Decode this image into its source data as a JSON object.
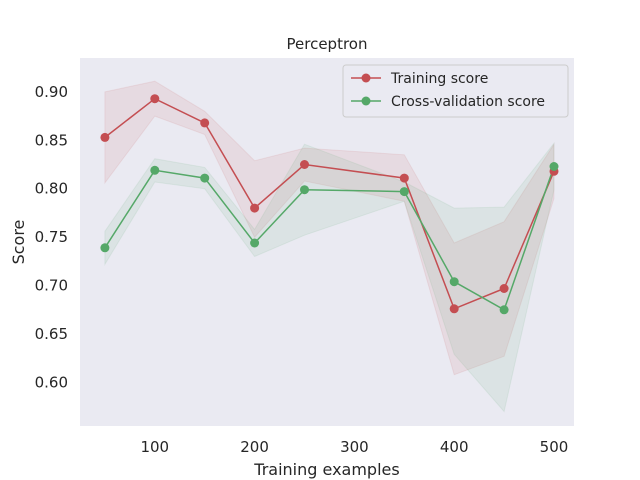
{
  "chart_data": {
    "type": "line",
    "title": "Perceptron",
    "xlabel": "Training examples",
    "ylabel": "Score",
    "xlim": [
      25,
      520
    ],
    "ylim": [
      0.555,
      0.935
    ],
    "xticks": [
      100,
      200,
      300,
      400,
      500
    ],
    "xtick_labels": [
      "100",
      "200",
      "300",
      "400",
      "500"
    ],
    "yticks": [
      0.6,
      0.65,
      0.7,
      0.75,
      0.8,
      0.85,
      0.9
    ],
    "ytick_labels": [
      "0.60",
      "0.65",
      "0.70",
      "0.75",
      "0.80",
      "0.85",
      "0.90"
    ],
    "grid": false,
    "legend_position": "top-right",
    "x": [
      50,
      100,
      150,
      200,
      250,
      350,
      400,
      450,
      500
    ],
    "series": [
      {
        "name": "Training score",
        "color": "#c44e52",
        "values": [
          0.853,
          0.893,
          0.868,
          0.78,
          0.825,
          0.811,
          0.676,
          0.697,
          0.818
        ],
        "lower": [
          0.806,
          0.875,
          0.856,
          0.75,
          0.808,
          0.787,
          0.608,
          0.627,
          0.79
        ],
        "upper": [
          0.9,
          0.911,
          0.88,
          0.829,
          0.842,
          0.835,
          0.744,
          0.766,
          0.846
        ]
      },
      {
        "name": "Cross-validation score",
        "color": "#55a868",
        "values": [
          0.739,
          0.819,
          0.811,
          0.744,
          0.799,
          0.797,
          0.704,
          0.675,
          0.823
        ],
        "lower": [
          0.722,
          0.807,
          0.8,
          0.73,
          0.752,
          0.787,
          0.629,
          0.57,
          0.799
        ],
        "upper": [
          0.756,
          0.831,
          0.822,
          0.758,
          0.846,
          0.807,
          0.78,
          0.781,
          0.847
        ]
      }
    ]
  }
}
